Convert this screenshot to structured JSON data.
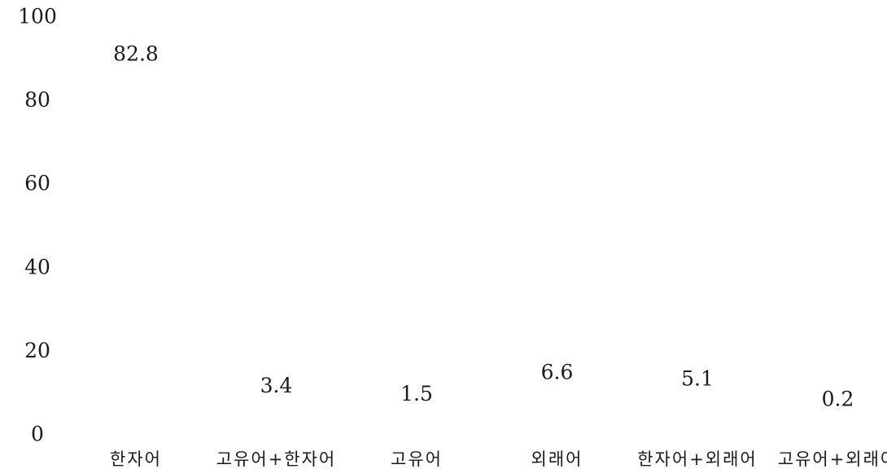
{
  "chart_data": {
    "type": "bar",
    "categories": [
      "한자어",
      "고유어+한자어",
      "고유어",
      "외래어",
      "한자어+외래어",
      "고유어+외래어"
    ],
    "values": [
      82.8,
      3.4,
      1.5,
      6.6,
      5.1,
      0.2
    ],
    "data_labels": [
      "82.8",
      "3.4",
      "1.5",
      "6.6",
      "5.1",
      "0.2"
    ],
    "yticks": [
      "0",
      "20",
      "40",
      "60",
      "80",
      "100"
    ],
    "ylim": [
      0,
      100
    ],
    "title": "",
    "xlabel": "",
    "ylabel": "",
    "grid": false,
    "bars_visible": false
  }
}
